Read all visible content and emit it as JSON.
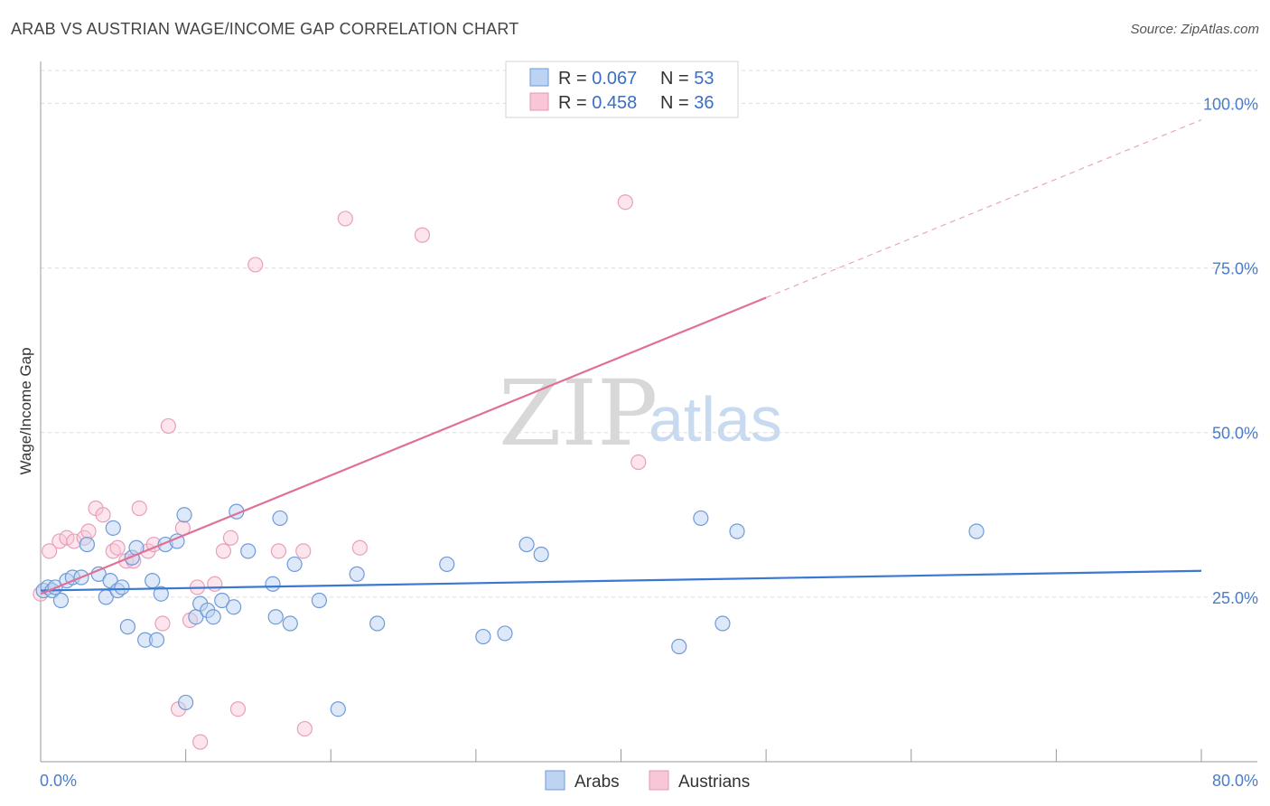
{
  "header": {
    "title": "ARAB VS AUSTRIAN WAGE/INCOME GAP CORRELATION CHART",
    "source": "Source: ZipAtlas.com"
  },
  "watermark": {
    "zip": "ZIP",
    "atlas": "atlas"
  },
  "legend": {
    "arabs": {
      "r_label": "R = ",
      "r_value": "0.067",
      "n_label": "N = ",
      "n_value": "53"
    },
    "austrians": {
      "r_label": "R = ",
      "r_value": "0.458",
      "n_label": "N = ",
      "n_value": "36"
    }
  },
  "bottom_legend": {
    "arabs": "Arabs",
    "austrians": "Austrians"
  },
  "chart_data": {
    "type": "scatter",
    "title": "ARAB VS AUSTRIAN WAGE/INCOME GAP CORRELATION CHART",
    "xlabel": "",
    "ylabel": "Wage/Income Gap",
    "xlim": [
      0,
      80
    ],
    "ylim": [
      0,
      105
    ],
    "x_tick_labels": [
      "0.0%",
      "80.0%"
    ],
    "y_ticks": [
      {
        "value": 25,
        "label": "25.0%"
      },
      {
        "value": 50,
        "label": "50.0%"
      },
      {
        "value": 75,
        "label": "75.0%"
      },
      {
        "value": 100,
        "label": "100.0%"
      }
    ],
    "colors": {
      "arabs": "#3a78d4",
      "austrians": "#e07098"
    },
    "series": [
      {
        "name": "Arabs",
        "color": "#3a78d4",
        "trend": {
          "x0": 0,
          "y0": 26.0,
          "x1": 80,
          "y1": 29.0
        },
        "points": [
          [
            0.2,
            26.0
          ],
          [
            0.5,
            26.5
          ],
          [
            0.8,
            26.0
          ],
          [
            1.0,
            26.5
          ],
          [
            1.4,
            24.5
          ],
          [
            1.8,
            27.5
          ],
          [
            2.2,
            28.0
          ],
          [
            2.8,
            28.0
          ],
          [
            3.2,
            33.0
          ],
          [
            4.0,
            28.5
          ],
          [
            4.5,
            25.0
          ],
          [
            4.8,
            27.5
          ],
          [
            5.0,
            35.5
          ],
          [
            5.3,
            26.0
          ],
          [
            5.6,
            26.5
          ],
          [
            6.0,
            20.5
          ],
          [
            6.3,
            31.0
          ],
          [
            6.6,
            32.5
          ],
          [
            7.2,
            18.5
          ],
          [
            7.7,
            27.5
          ],
          [
            8.0,
            18.5
          ],
          [
            8.3,
            25.5
          ],
          [
            8.6,
            33.0
          ],
          [
            9.4,
            33.5
          ],
          [
            9.9,
            37.5
          ],
          [
            10.0,
            9.0
          ],
          [
            10.7,
            22.0
          ],
          [
            11.0,
            24.0
          ],
          [
            11.5,
            23.0
          ],
          [
            11.9,
            22.0
          ],
          [
            12.5,
            24.5
          ],
          [
            13.3,
            23.5
          ],
          [
            13.5,
            38.0
          ],
          [
            14.3,
            32.0
          ],
          [
            16.0,
            27.0
          ],
          [
            16.2,
            22.0
          ],
          [
            16.5,
            37.0
          ],
          [
            17.2,
            21.0
          ],
          [
            17.5,
            30.0
          ],
          [
            19.2,
            24.5
          ],
          [
            20.5,
            8.0
          ],
          [
            21.8,
            28.5
          ],
          [
            23.2,
            21.0
          ],
          [
            28.0,
            30.0
          ],
          [
            30.5,
            19.0
          ],
          [
            32.0,
            19.5
          ],
          [
            33.5,
            33.0
          ],
          [
            34.5,
            31.5
          ],
          [
            44.0,
            17.5
          ],
          [
            45.5,
            37.0
          ],
          [
            47.0,
            21.0
          ],
          [
            48.0,
            35.0
          ],
          [
            64.5,
            35.0
          ]
        ]
      },
      {
        "name": "Austrians",
        "color": "#e07098",
        "trend": {
          "x0": 0,
          "y0": 25.5,
          "x1": 50,
          "y1": 70.5
        },
        "trend_dashed": {
          "x0": 50,
          "y0": 70.5,
          "x1": 80,
          "y1": 97.5
        },
        "points": [
          [
            0.0,
            25.5
          ],
          [
            0.6,
            32.0
          ],
          [
            1.3,
            33.5
          ],
          [
            1.8,
            34.0
          ],
          [
            2.3,
            33.5
          ],
          [
            3.0,
            34.0
          ],
          [
            3.3,
            35.0
          ],
          [
            3.8,
            38.5
          ],
          [
            4.3,
            37.5
          ],
          [
            5.0,
            32.0
          ],
          [
            5.3,
            32.5
          ],
          [
            5.9,
            30.5
          ],
          [
            6.4,
            30.5
          ],
          [
            6.8,
            38.5
          ],
          [
            7.4,
            32.0
          ],
          [
            7.8,
            33.0
          ],
          [
            8.4,
            21.0
          ],
          [
            8.8,
            51.0
          ],
          [
            9.5,
            8.0
          ],
          [
            9.8,
            35.5
          ],
          [
            10.3,
            21.5
          ],
          [
            10.8,
            26.5
          ],
          [
            11.0,
            3.0
          ],
          [
            12.0,
            27.0
          ],
          [
            12.6,
            32.0
          ],
          [
            13.1,
            34.0
          ],
          [
            13.6,
            8.0
          ],
          [
            14.8,
            75.5
          ],
          [
            16.4,
            32.0
          ],
          [
            18.1,
            32.0
          ],
          [
            18.2,
            5.0
          ],
          [
            21.0,
            82.5
          ],
          [
            22.0,
            32.5
          ],
          [
            26.3,
            80.0
          ],
          [
            40.3,
            85.0
          ],
          [
            41.2,
            45.5
          ]
        ]
      }
    ]
  }
}
